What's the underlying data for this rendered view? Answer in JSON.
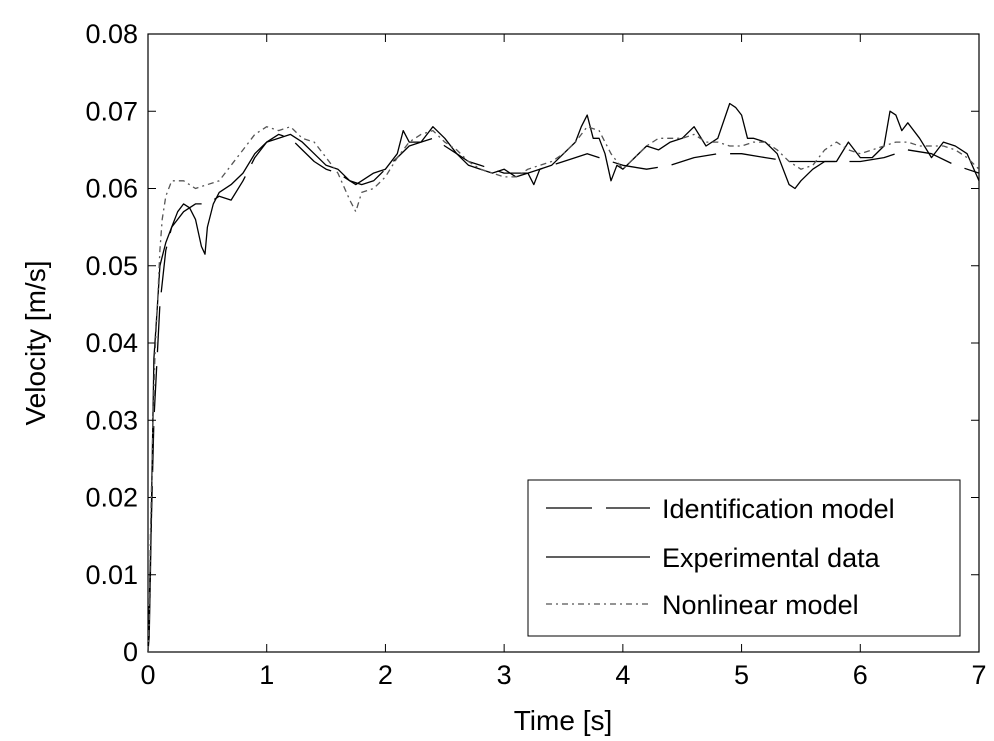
{
  "chart_data": {
    "type": "line",
    "title": "",
    "xlabel": "Time [s]",
    "ylabel": "Velocity [m/s]",
    "xlim": [
      0,
      7
    ],
    "ylim": [
      0,
      0.08
    ],
    "xticks": [
      "0",
      "1",
      "2",
      "3",
      "4",
      "5",
      "6",
      "7"
    ],
    "yticks": [
      "0",
      "0.01",
      "0.02",
      "0.03",
      "0.04",
      "0.05",
      "0.06",
      "0.07",
      "0.08"
    ],
    "grid": false,
    "legend_position": "bottom-right",
    "series": [
      {
        "name": "Identification model",
        "style": "dashed",
        "color": "#000000",
        "x": [
          0,
          0.02,
          0.05,
          0.1,
          0.15,
          0.2,
          0.3,
          0.4,
          0.5,
          0.6,
          0.7,
          0.8,
          0.9,
          1.0,
          1.1,
          1.2,
          1.3,
          1.4,
          1.5,
          1.6,
          1.7,
          1.8,
          1.9,
          2.0,
          2.1,
          2.2,
          2.3,
          2.4,
          2.5,
          2.6,
          2.7,
          2.8,
          2.9,
          3.0,
          3.1,
          3.2,
          3.3,
          3.4,
          3.5,
          3.6,
          3.7,
          3.8,
          3.9,
          4.0,
          4.2,
          4.4,
          4.6,
          4.8,
          5.0,
          5.2,
          5.4,
          5.6,
          5.8,
          6.0,
          6.2,
          6.4,
          6.6,
          6.8,
          7.0
        ],
        "y": [
          0.0,
          0.012,
          0.03,
          0.045,
          0.052,
          0.055,
          0.057,
          0.058,
          0.058,
          0.059,
          0.0585,
          0.061,
          0.064,
          0.066,
          0.067,
          0.0665,
          0.065,
          0.0635,
          0.0625,
          0.062,
          0.061,
          0.0605,
          0.061,
          0.0625,
          0.064,
          0.0655,
          0.066,
          0.0665,
          0.0655,
          0.0645,
          0.0635,
          0.063,
          0.0625,
          0.062,
          0.062,
          0.062,
          0.0625,
          0.063,
          0.0635,
          0.064,
          0.0645,
          0.064,
          0.0635,
          0.063,
          0.0625,
          0.063,
          0.064,
          0.0645,
          0.0645,
          0.064,
          0.0635,
          0.0635,
          0.0635,
          0.0635,
          0.064,
          0.065,
          0.0645,
          0.063,
          0.062
        ]
      },
      {
        "name": "Experimental data",
        "style": "solid",
        "color": "#000000",
        "x": [
          0,
          0.01,
          0.02,
          0.03,
          0.05,
          0.08,
          0.1,
          0.15,
          0.2,
          0.25,
          0.3,
          0.35,
          0.4,
          0.45,
          0.48,
          0.5,
          0.55,
          0.6,
          0.7,
          0.8,
          0.9,
          1.0,
          1.1,
          1.2,
          1.3,
          1.4,
          1.5,
          1.6,
          1.7,
          1.75,
          1.8,
          1.9,
          2.0,
          2.1,
          2.15,
          2.2,
          2.3,
          2.4,
          2.5,
          2.6,
          2.7,
          2.8,
          2.9,
          3.0,
          3.1,
          3.2,
          3.25,
          3.3,
          3.4,
          3.5,
          3.6,
          3.65,
          3.7,
          3.75,
          3.8,
          3.85,
          3.9,
          3.95,
          4.0,
          4.1,
          4.2,
          4.3,
          4.4,
          4.5,
          4.6,
          4.7,
          4.8,
          4.9,
          4.95,
          5.0,
          5.05,
          5.1,
          5.2,
          5.3,
          5.4,
          5.45,
          5.5,
          5.6,
          5.7,
          5.8,
          5.9,
          6.0,
          6.1,
          6.2,
          6.25,
          6.3,
          6.35,
          6.4,
          6.5,
          6.6,
          6.7,
          6.8,
          6.9,
          7.0
        ],
        "y": [
          0.0,
          0.002,
          0.01,
          0.02,
          0.038,
          0.045,
          0.05,
          0.053,
          0.055,
          0.057,
          0.058,
          0.0575,
          0.056,
          0.0525,
          0.0515,
          0.055,
          0.058,
          0.0595,
          0.0605,
          0.062,
          0.0645,
          0.066,
          0.0665,
          0.067,
          0.066,
          0.0645,
          0.063,
          0.0625,
          0.061,
          0.0605,
          0.061,
          0.062,
          0.0625,
          0.0645,
          0.0675,
          0.066,
          0.066,
          0.068,
          0.0665,
          0.0645,
          0.063,
          0.0625,
          0.062,
          0.0625,
          0.0615,
          0.062,
          0.0605,
          0.0625,
          0.063,
          0.0645,
          0.066,
          0.068,
          0.0695,
          0.0665,
          0.0665,
          0.0645,
          0.061,
          0.063,
          0.0625,
          0.064,
          0.0655,
          0.065,
          0.066,
          0.0665,
          0.068,
          0.0655,
          0.0665,
          0.071,
          0.0705,
          0.0695,
          0.0665,
          0.0665,
          0.066,
          0.0645,
          0.0605,
          0.06,
          0.061,
          0.0625,
          0.0635,
          0.0635,
          0.066,
          0.064,
          0.064,
          0.0655,
          0.07,
          0.0695,
          0.0675,
          0.0685,
          0.0665,
          0.064,
          0.066,
          0.0655,
          0.0645,
          0.061
        ]
      },
      {
        "name": "Nonlinear model",
        "style": "dashdot",
        "color": "#000000",
        "x": [
          0,
          0.01,
          0.02,
          0.03,
          0.04,
          0.05,
          0.06,
          0.08,
          0.1,
          0.12,
          0.15,
          0.2,
          0.3,
          0.4,
          0.5,
          0.6,
          0.7,
          0.8,
          0.9,
          1.0,
          1.1,
          1.2,
          1.3,
          1.4,
          1.5,
          1.6,
          1.7,
          1.75,
          1.8,
          1.9,
          2.0,
          2.1,
          2.2,
          2.3,
          2.4,
          2.5,
          2.6,
          2.7,
          2.8,
          2.9,
          3.0,
          3.1,
          3.2,
          3.3,
          3.4,
          3.5,
          3.6,
          3.7,
          3.8,
          3.9,
          4.0,
          4.1,
          4.2,
          4.3,
          4.4,
          4.5,
          4.6,
          4.7,
          4.8,
          4.9,
          5.0,
          5.1,
          5.2,
          5.3,
          5.4,
          5.5,
          5.6,
          5.7,
          5.8,
          5.9,
          6.0,
          6.1,
          6.2,
          6.3,
          6.4,
          6.5,
          6.6,
          6.7,
          6.8,
          6.9,
          7.0
        ],
        "y": [
          0.0,
          0.004,
          0.015,
          0.022,
          0.028,
          0.034,
          0.039,
          0.045,
          0.052,
          0.056,
          0.059,
          0.061,
          0.061,
          0.06,
          0.0605,
          0.061,
          0.063,
          0.065,
          0.067,
          0.068,
          0.0675,
          0.068,
          0.0665,
          0.066,
          0.064,
          0.062,
          0.0585,
          0.057,
          0.0595,
          0.06,
          0.0615,
          0.064,
          0.066,
          0.067,
          0.0675,
          0.066,
          0.065,
          0.0635,
          0.0625,
          0.062,
          0.0615,
          0.0615,
          0.0625,
          0.063,
          0.0635,
          0.0645,
          0.066,
          0.068,
          0.0675,
          0.0645,
          0.0625,
          0.064,
          0.0655,
          0.0665,
          0.0665,
          0.0665,
          0.067,
          0.066,
          0.066,
          0.0655,
          0.0655,
          0.066,
          0.066,
          0.065,
          0.0635,
          0.0625,
          0.063,
          0.065,
          0.066,
          0.065,
          0.0645,
          0.065,
          0.0655,
          0.066,
          0.066,
          0.0655,
          0.0655,
          0.0655,
          0.065,
          0.064,
          0.0625
        ]
      }
    ]
  }
}
